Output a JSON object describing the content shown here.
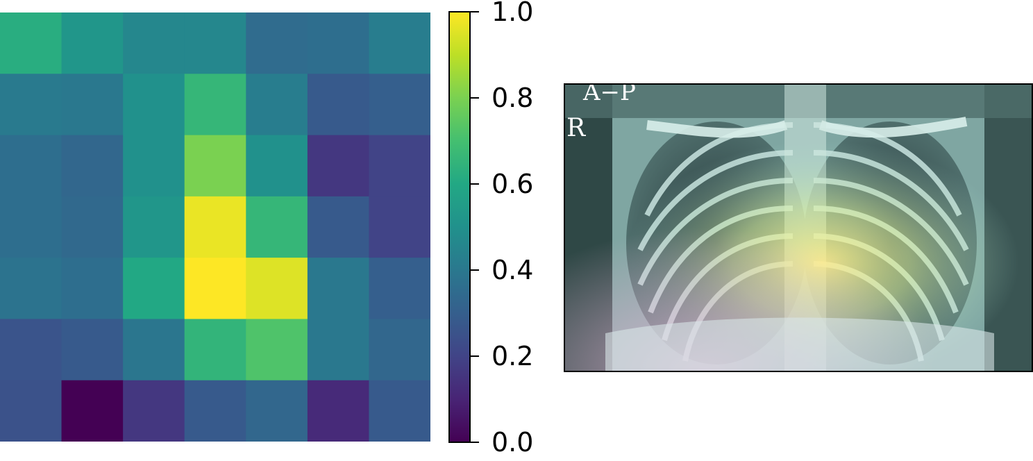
{
  "chart_data": [
    {
      "type": "heatmap",
      "rows": 7,
      "cols": 7,
      "values": [
        [
          0.62,
          0.52,
          0.46,
          0.46,
          0.35,
          0.36,
          0.42
        ],
        [
          0.41,
          0.4,
          0.5,
          0.66,
          0.42,
          0.28,
          0.3
        ],
        [
          0.36,
          0.33,
          0.5,
          0.8,
          0.5,
          0.16,
          0.2
        ],
        [
          0.36,
          0.34,
          0.52,
          0.97,
          0.66,
          0.28,
          0.2
        ],
        [
          0.38,
          0.36,
          0.6,
          1.0,
          0.95,
          0.4,
          0.3
        ],
        [
          0.26,
          0.28,
          0.39,
          0.65,
          0.72,
          0.4,
          0.33
        ],
        [
          0.25,
          0.0,
          0.16,
          0.28,
          0.33,
          0.12,
          0.28
        ]
      ],
      "colormap": "viridis",
      "vmin": 0.0,
      "vmax": 1.0
    },
    {
      "type": "colorbar",
      "ticks": [
        "0.0",
        "0.2",
        "0.4",
        "0.6",
        "0.8",
        "1.0"
      ],
      "tick_values": [
        0.0,
        0.2,
        0.4,
        0.6,
        0.8,
        1.0
      ]
    }
  ],
  "xray": {
    "labels": [
      "A−P",
      "R"
    ]
  },
  "colors": {
    "border": "#000000",
    "background": "#ffffff"
  }
}
